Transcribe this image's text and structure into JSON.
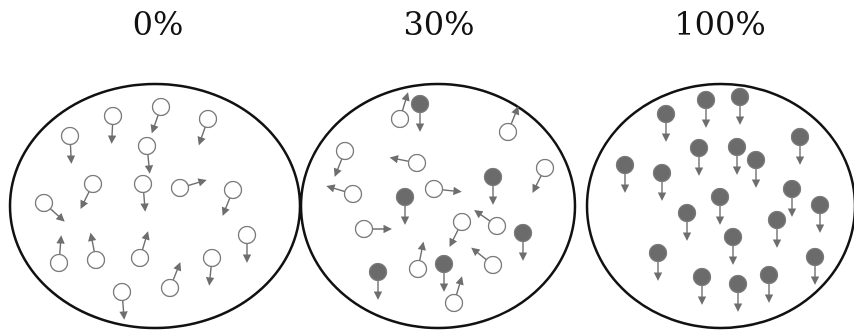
{
  "panels": [
    {
      "label": "0%",
      "particles": [
        {
          "filled": false,
          "dir": [
            0.05,
            1
          ]
        },
        {
          "filled": false,
          "dir": [
            -0.05,
            1
          ]
        },
        {
          "filled": false,
          "dir": [
            -0.35,
            1
          ]
        },
        {
          "filled": false,
          "dir": [
            -0.35,
            1
          ]
        },
        {
          "filled": false,
          "dir": [
            0.1,
            1
          ]
        },
        {
          "filled": false,
          "dir": [
            -0.5,
            1
          ]
        },
        {
          "filled": false,
          "dir": [
            0.08,
            1
          ]
        },
        {
          "filled": false,
          "dir": [
            1,
            -0.3
          ]
        },
        {
          "filled": false,
          "dir": [
            -0.4,
            1
          ]
        },
        {
          "filled": false,
          "dir": [
            1,
            0.9
          ]
        },
        {
          "filled": false,
          "dir": [
            0.08,
            -1
          ]
        },
        {
          "filled": false,
          "dir": [
            -0.2,
            -1
          ]
        },
        {
          "filled": false,
          "dir": [
            0.3,
            -1
          ]
        },
        {
          "filled": false,
          "dir": [
            0.4,
            -1
          ]
        },
        {
          "filled": false,
          "dir": [
            -0.1,
            1
          ]
        },
        {
          "filled": false,
          "dir": [
            0,
            1
          ]
        },
        {
          "filled": false,
          "dir": [
            0.08,
            1
          ]
        }
      ]
    },
    {
      "label": "30%",
      "particles": [
        {
          "filled": false,
          "dir": [
            0.3,
            -1
          ]
        },
        {
          "filled": true,
          "dir": [
            0,
            1
          ]
        },
        {
          "filled": false,
          "dir": [
            -0.4,
            1
          ]
        },
        {
          "filled": false,
          "dir": [
            0.4,
            -1
          ]
        },
        {
          "filled": false,
          "dir": [
            -1,
            -0.2
          ]
        },
        {
          "filled": false,
          "dir": [
            -1,
            -0.3
          ]
        },
        {
          "filled": false,
          "dir": [
            1,
            0.1
          ]
        },
        {
          "filled": true,
          "dir": [
            0,
            1
          ]
        },
        {
          "filled": false,
          "dir": [
            -0.5,
            1
          ]
        },
        {
          "filled": true,
          "dir": [
            0,
            1
          ]
        },
        {
          "filled": false,
          "dir": [
            1,
            0
          ]
        },
        {
          "filled": false,
          "dir": [
            -0.5,
            1
          ]
        },
        {
          "filled": false,
          "dir": [
            -1,
            -0.7
          ]
        },
        {
          "filled": true,
          "dir": [
            0,
            1
          ]
        },
        {
          "filled": false,
          "dir": [
            0.2,
            -1
          ]
        },
        {
          "filled": true,
          "dir": [
            0,
            1
          ]
        },
        {
          "filled": true,
          "dir": [
            0,
            1
          ]
        },
        {
          "filled": false,
          "dir": [
            -1,
            -0.8
          ]
        },
        {
          "filled": false,
          "dir": [
            0.3,
            -1
          ]
        }
      ]
    },
    {
      "label": "100%",
      "particles": [
        {
          "filled": true,
          "dir": [
            0,
            1
          ]
        },
        {
          "filled": true,
          "dir": [
            0,
            1
          ]
        },
        {
          "filled": true,
          "dir": [
            0,
            1
          ]
        },
        {
          "filled": true,
          "dir": [
            0,
            1
          ]
        },
        {
          "filled": true,
          "dir": [
            0,
            1
          ]
        },
        {
          "filled": true,
          "dir": [
            0,
            1
          ]
        },
        {
          "filled": true,
          "dir": [
            0,
            1
          ]
        },
        {
          "filled": true,
          "dir": [
            0,
            1
          ]
        },
        {
          "filled": true,
          "dir": [
            0,
            1
          ]
        },
        {
          "filled": true,
          "dir": [
            0,
            1
          ]
        },
        {
          "filled": true,
          "dir": [
            0,
            1
          ]
        },
        {
          "filled": true,
          "dir": [
            0,
            1
          ]
        },
        {
          "filled": true,
          "dir": [
            0,
            1
          ]
        },
        {
          "filled": true,
          "dir": [
            0,
            1
          ]
        },
        {
          "filled": true,
          "dir": [
            0,
            1
          ]
        },
        {
          "filled": true,
          "dir": [
            0,
            1
          ]
        },
        {
          "filled": true,
          "dir": [
            0,
            1
          ]
        },
        {
          "filled": true,
          "dir": [
            0,
            1
          ]
        },
        {
          "filled": true,
          "dir": [
            0,
            1
          ]
        },
        {
          "filled": true,
          "dir": [
            0,
            1
          ]
        }
      ]
    }
  ],
  "colors": {
    "filled_particle": "#6b6b6b",
    "hollow_particle": "#ffffff",
    "particle_outline": "#7a7a7a",
    "arrow": "#6e6e6e",
    "container_outline": "#111111"
  }
}
